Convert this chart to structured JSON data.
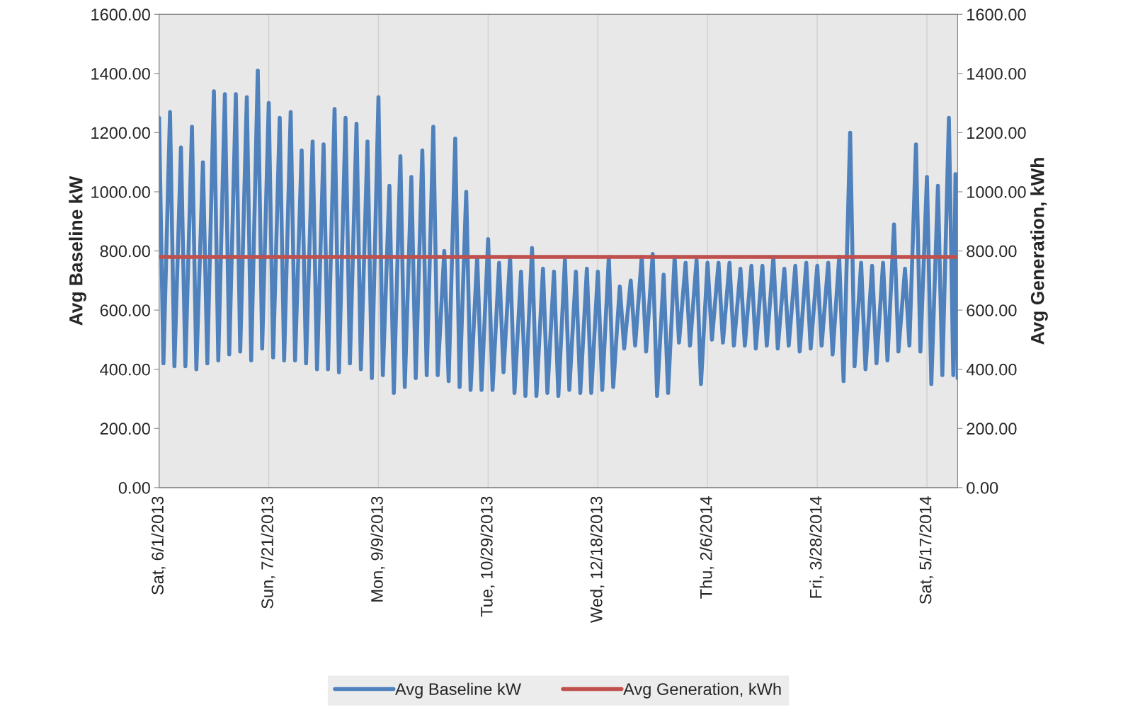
{
  "chart_data": {
    "type": "line",
    "ylabel": "Avg Baseline kW",
    "y2label": "Avg Generation, kWh",
    "xlim": [
      "2013-06-01",
      "2014-05-31"
    ],
    "xticks": [
      {
        "value": "2013-06-01",
        "label": "Sat, 6/1/2013"
      },
      {
        "value": "2013-07-21",
        "label": "Sun, 7/21/2013"
      },
      {
        "value": "2013-09-09",
        "label": "Mon, 9/9/2013"
      },
      {
        "value": "2013-10-29",
        "label": "Tue, 10/29/2013"
      },
      {
        "value": "2013-12-18",
        "label": "Wed, 12/18/2013"
      },
      {
        "value": "2014-02-06",
        "label": "Thu, 2/6/2014"
      },
      {
        "value": "2014-03-28",
        "label": "Fri, 3/28/2014"
      },
      {
        "value": "2014-05-17",
        "label": "Sat, 5/17/2014"
      }
    ],
    "ylim": [
      0,
      1600
    ],
    "yticks": [
      {
        "value": 0,
        "label": "0.00"
      },
      {
        "value": 200,
        "label": "200.00"
      },
      {
        "value": 400,
        "label": "400.00"
      },
      {
        "value": 600,
        "label": "600.00"
      },
      {
        "value": 800,
        "label": "800.00"
      },
      {
        "value": 1000,
        "label": "1000.00"
      },
      {
        "value": 1200,
        "label": "1200.00"
      },
      {
        "value": 1400,
        "label": "1400.00"
      },
      {
        "value": 1600,
        "label": "1600.00"
      }
    ],
    "y2lim": [
      0,
      1600
    ],
    "y2ticks": [
      {
        "value": 0,
        "label": "0.00"
      },
      {
        "value": 200,
        "label": "200.00"
      },
      {
        "value": 400,
        "label": "400.00"
      },
      {
        "value": 600,
        "label": "600.00"
      },
      {
        "value": 800,
        "label": "800.00"
      },
      {
        "value": 1000,
        "label": "1000.00"
      },
      {
        "value": 1200,
        "label": "1200.00"
      },
      {
        "value": 1400,
        "label": "1400.00"
      },
      {
        "value": 1600,
        "label": "1600.00"
      }
    ],
    "grid": "x",
    "legend": "bottom",
    "marker": "none",
    "line_style": "solid",
    "series": [
      {
        "name": "Avg Baseline kW",
        "color": "#4f81bd",
        "x": [
          "2013-06-01",
          "2013-06-03",
          "2013-06-06",
          "2013-06-08",
          "2013-06-11",
          "2013-06-13",
          "2013-06-16",
          "2013-06-18",
          "2013-06-21",
          "2013-06-23",
          "2013-06-26",
          "2013-06-28",
          "2013-07-01",
          "2013-07-03",
          "2013-07-06",
          "2013-07-08",
          "2013-07-11",
          "2013-07-13",
          "2013-07-16",
          "2013-07-18",
          "2013-07-21",
          "2013-07-23",
          "2013-07-26",
          "2013-07-28",
          "2013-07-31",
          "2013-08-02",
          "2013-08-05",
          "2013-08-07",
          "2013-08-10",
          "2013-08-12",
          "2013-08-15",
          "2013-08-17",
          "2013-08-20",
          "2013-08-22",
          "2013-08-25",
          "2013-08-27",
          "2013-08-30",
          "2013-09-01",
          "2013-09-04",
          "2013-09-06",
          "2013-09-09",
          "2013-09-11",
          "2013-09-14",
          "2013-09-16",
          "2013-09-19",
          "2013-09-21",
          "2013-09-24",
          "2013-09-26",
          "2013-09-29",
          "2013-10-01",
          "2013-10-04",
          "2013-10-06",
          "2013-10-09",
          "2013-10-11",
          "2013-10-14",
          "2013-10-16",
          "2013-10-19",
          "2013-10-21",
          "2013-10-24",
          "2013-10-26",
          "2013-10-29",
          "2013-10-31",
          "2013-11-03",
          "2013-11-05",
          "2013-11-08",
          "2013-11-10",
          "2013-11-13",
          "2013-11-15",
          "2013-11-18",
          "2013-11-20",
          "2013-11-23",
          "2013-11-25",
          "2013-11-28",
          "2013-11-30",
          "2013-12-03",
          "2013-12-05",
          "2013-12-08",
          "2013-12-10",
          "2013-12-13",
          "2013-12-15",
          "2013-12-18",
          "2013-12-20",
          "2013-12-23",
          "2013-12-25",
          "2013-12-28",
          "2013-12-30",
          "2014-01-02",
          "2014-01-04",
          "2014-01-07",
          "2014-01-09",
          "2014-01-12",
          "2014-01-14",
          "2014-01-17",
          "2014-01-19",
          "2014-01-22",
          "2014-01-24",
          "2014-01-27",
          "2014-01-29",
          "2014-02-01",
          "2014-02-03",
          "2014-02-06",
          "2014-02-08",
          "2014-02-11",
          "2014-02-13",
          "2014-02-16",
          "2014-02-18",
          "2014-02-21",
          "2014-02-23",
          "2014-02-26",
          "2014-02-28",
          "2014-03-03",
          "2014-03-05",
          "2014-03-08",
          "2014-03-10",
          "2014-03-13",
          "2014-03-15",
          "2014-03-18",
          "2014-03-20",
          "2014-03-23",
          "2014-03-25",
          "2014-03-28",
          "2014-03-30",
          "2014-04-02",
          "2014-04-04",
          "2014-04-07",
          "2014-04-09",
          "2014-04-12",
          "2014-04-14",
          "2014-04-17",
          "2014-04-19",
          "2014-04-22",
          "2014-04-24",
          "2014-04-27",
          "2014-04-29",
          "2014-05-02",
          "2014-05-04",
          "2014-05-07",
          "2014-05-09",
          "2014-05-12",
          "2014-05-14",
          "2014-05-17",
          "2014-05-19",
          "2014-05-22",
          "2014-05-24",
          "2014-05-27",
          "2014-05-29",
          "2014-05-30",
          "2014-05-31"
        ],
        "values": [
          1250,
          420,
          1270,
          410,
          1150,
          410,
          1220,
          400,
          1100,
          420,
          1340,
          430,
          1330,
          450,
          1330,
          460,
          1320,
          430,
          1410,
          470,
          1300,
          440,
          1250,
          430,
          1270,
          430,
          1140,
          420,
          1170,
          400,
          1160,
          400,
          1280,
          390,
          1250,
          420,
          1230,
          400,
          1170,
          370,
          1320,
          380,
          1020,
          320,
          1120,
          340,
          1050,
          370,
          1140,
          380,
          1220,
          380,
          800,
          360,
          1180,
          340,
          1000,
          330,
          780,
          330,
          840,
          330,
          760,
          390,
          780,
          320,
          730,
          310,
          810,
          310,
          740,
          320,
          730,
          310,
          770,
          330,
          730,
          320,
          740,
          320,
          730,
          330,
          780,
          340,
          680,
          470,
          700,
          480,
          780,
          460,
          790,
          310,
          720,
          320,
          780,
          490,
          760,
          480,
          770,
          350,
          760,
          500,
          760,
          490,
          760,
          480,
          740,
          480,
          750,
          470,
          750,
          480,
          780,
          470,
          740,
          480,
          750,
          460,
          760,
          470,
          750,
          480,
          760,
          450,
          780,
          360,
          1200,
          410,
          760,
          400,
          750,
          420,
          760,
          430,
          890,
          460,
          740,
          480,
          1160,
          460,
          1050,
          350,
          1020,
          380,
          1250,
          380,
          1060,
          370
        ]
      },
      {
        "name": "Avg Generation, kWh",
        "color": "#c0504d",
        "axis": "y2",
        "x": [
          "2013-06-01",
          "2014-05-31"
        ],
        "values": [
          780,
          780
        ]
      }
    ]
  }
}
